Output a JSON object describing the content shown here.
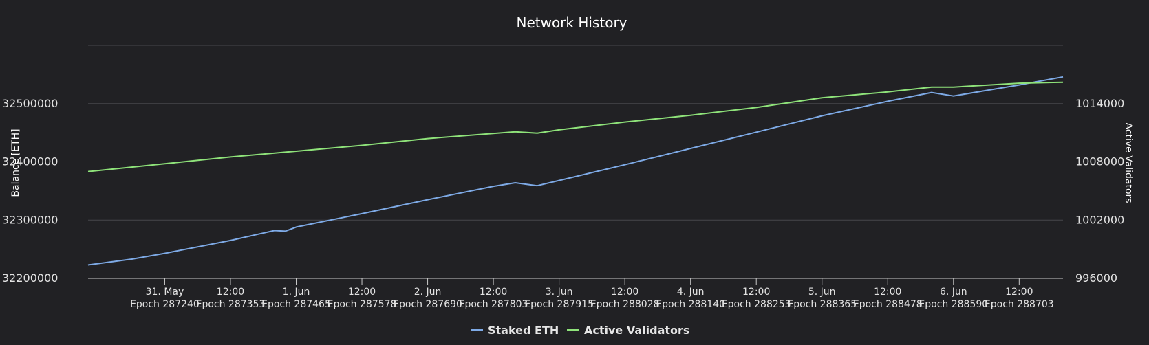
{
  "chart_data": {
    "type": "line",
    "title": "Network History",
    "colors": {
      "background": "#212124",
      "staked_eth": "#7eaae6",
      "active_validators": "#8fe37a"
    },
    "y_left": {
      "label": "Balance [ETH]",
      "ticks": [
        32200000,
        32300000,
        32400000,
        32500000
      ],
      "range": [
        32200000,
        32600000
      ]
    },
    "y_right": {
      "label": "Active Validators",
      "ticks": [
        996000,
        1002000,
        1008000,
        1014000
      ],
      "range": [
        996000,
        1020000
      ]
    },
    "x_axis": {
      "type": "datetime",
      "range": [
        "2023-05-30T10:00",
        "2023-06-06T20:00"
      ],
      "ticks": [
        {
          "line1": "31. May",
          "line2": "Epoch 287240",
          "t": "2023-05-31T00:00"
        },
        {
          "line1": "12:00",
          "line2": "Epoch 287353",
          "t": "2023-05-31T12:00"
        },
        {
          "line1": "1. Jun",
          "line2": "Epoch 287465",
          "t": "2023-06-01T00:00"
        },
        {
          "line1": "12:00",
          "line2": "Epoch 287578",
          "t": "2023-06-01T12:00"
        },
        {
          "line1": "2. Jun",
          "line2": "Epoch 287690",
          "t": "2023-06-02T00:00"
        },
        {
          "line1": "12:00",
          "line2": "Epoch 287803",
          "t": "2023-06-02T12:00"
        },
        {
          "line1": "3. Jun",
          "line2": "Epoch 287915",
          "t": "2023-06-03T00:00"
        },
        {
          "line1": "12:00",
          "line2": "Epoch 288028",
          "t": "2023-06-03T12:00"
        },
        {
          "line1": "4. Jun",
          "line2": "Epoch 288140",
          "t": "2023-06-04T00:00"
        },
        {
          "line1": "12:00",
          "line2": "Epoch 288253",
          "t": "2023-06-04T12:00"
        },
        {
          "line1": "5. Jun",
          "line2": "Epoch 288365",
          "t": "2023-06-05T00:00"
        },
        {
          "line1": "12:00",
          "line2": "Epoch 288478",
          "t": "2023-06-05T12:00"
        },
        {
          "line1": "6. Jun",
          "line2": "Epoch 288590",
          "t": "2023-06-06T00:00"
        },
        {
          "line1": "12:00",
          "line2": "Epoch 288703",
          "t": "2023-06-06T12:00"
        }
      ]
    },
    "grid": true,
    "legend_position": "bottom-center",
    "series": [
      {
        "name": "Staked ETH",
        "axis": "left",
        "color_key": "staked_eth",
        "points": [
          [
            "2023-05-30T10:00",
            32223000
          ],
          [
            "2023-05-30T18:00",
            32233000
          ],
          [
            "2023-05-31T00:00",
            32243000
          ],
          [
            "2023-05-31T12:00",
            32265000
          ],
          [
            "2023-05-31T20:00",
            32282000
          ],
          [
            "2023-05-31T22:00",
            32281000
          ],
          [
            "2023-06-01T00:00",
            32288000
          ],
          [
            "2023-06-01T12:00",
            32311000
          ],
          [
            "2023-06-02T00:00",
            32335000
          ],
          [
            "2023-06-02T12:00",
            32358000
          ],
          [
            "2023-06-02T16:00",
            32364000
          ],
          [
            "2023-06-02T20:00",
            32359000
          ],
          [
            "2023-06-03T00:00",
            32368000
          ],
          [
            "2023-06-03T12:00",
            32395000
          ],
          [
            "2023-06-04T00:00",
            32423000
          ],
          [
            "2023-06-04T12:00",
            32451000
          ],
          [
            "2023-06-05T00:00",
            32479000
          ],
          [
            "2023-06-05T12:00",
            32504000
          ],
          [
            "2023-06-05T20:00",
            32519000
          ],
          [
            "2023-06-06T00:00",
            32513000
          ],
          [
            "2023-06-06T12:00",
            32532000
          ],
          [
            "2023-06-06T20:00",
            32546000
          ]
        ]
      },
      {
        "name": "Active Validators",
        "axis": "right",
        "color_key": "active_validators",
        "points": [
          [
            "2023-05-30T10:00",
            1007000
          ],
          [
            "2023-05-31T00:00",
            1007800
          ],
          [
            "2023-05-31T12:00",
            1008500
          ],
          [
            "2023-05-31T22:00",
            1009000
          ],
          [
            "2023-06-01T00:00",
            1009100
          ],
          [
            "2023-06-01T12:00",
            1009700
          ],
          [
            "2023-06-02T00:00",
            1010400
          ],
          [
            "2023-06-02T16:00",
            1011100
          ],
          [
            "2023-06-02T20:00",
            1010950
          ],
          [
            "2023-06-03T00:00",
            1011300
          ],
          [
            "2023-06-03T12:00",
            1012100
          ],
          [
            "2023-06-04T00:00",
            1012800
          ],
          [
            "2023-06-04T12:00",
            1013600
          ],
          [
            "2023-06-05T00:00",
            1014600
          ],
          [
            "2023-06-05T12:00",
            1015200
          ],
          [
            "2023-06-05T20:00",
            1015700
          ],
          [
            "2023-06-06T00:00",
            1015700
          ],
          [
            "2023-06-06T12:00",
            1016100
          ],
          [
            "2023-06-06T20:00",
            1016200
          ]
        ]
      }
    ]
  }
}
